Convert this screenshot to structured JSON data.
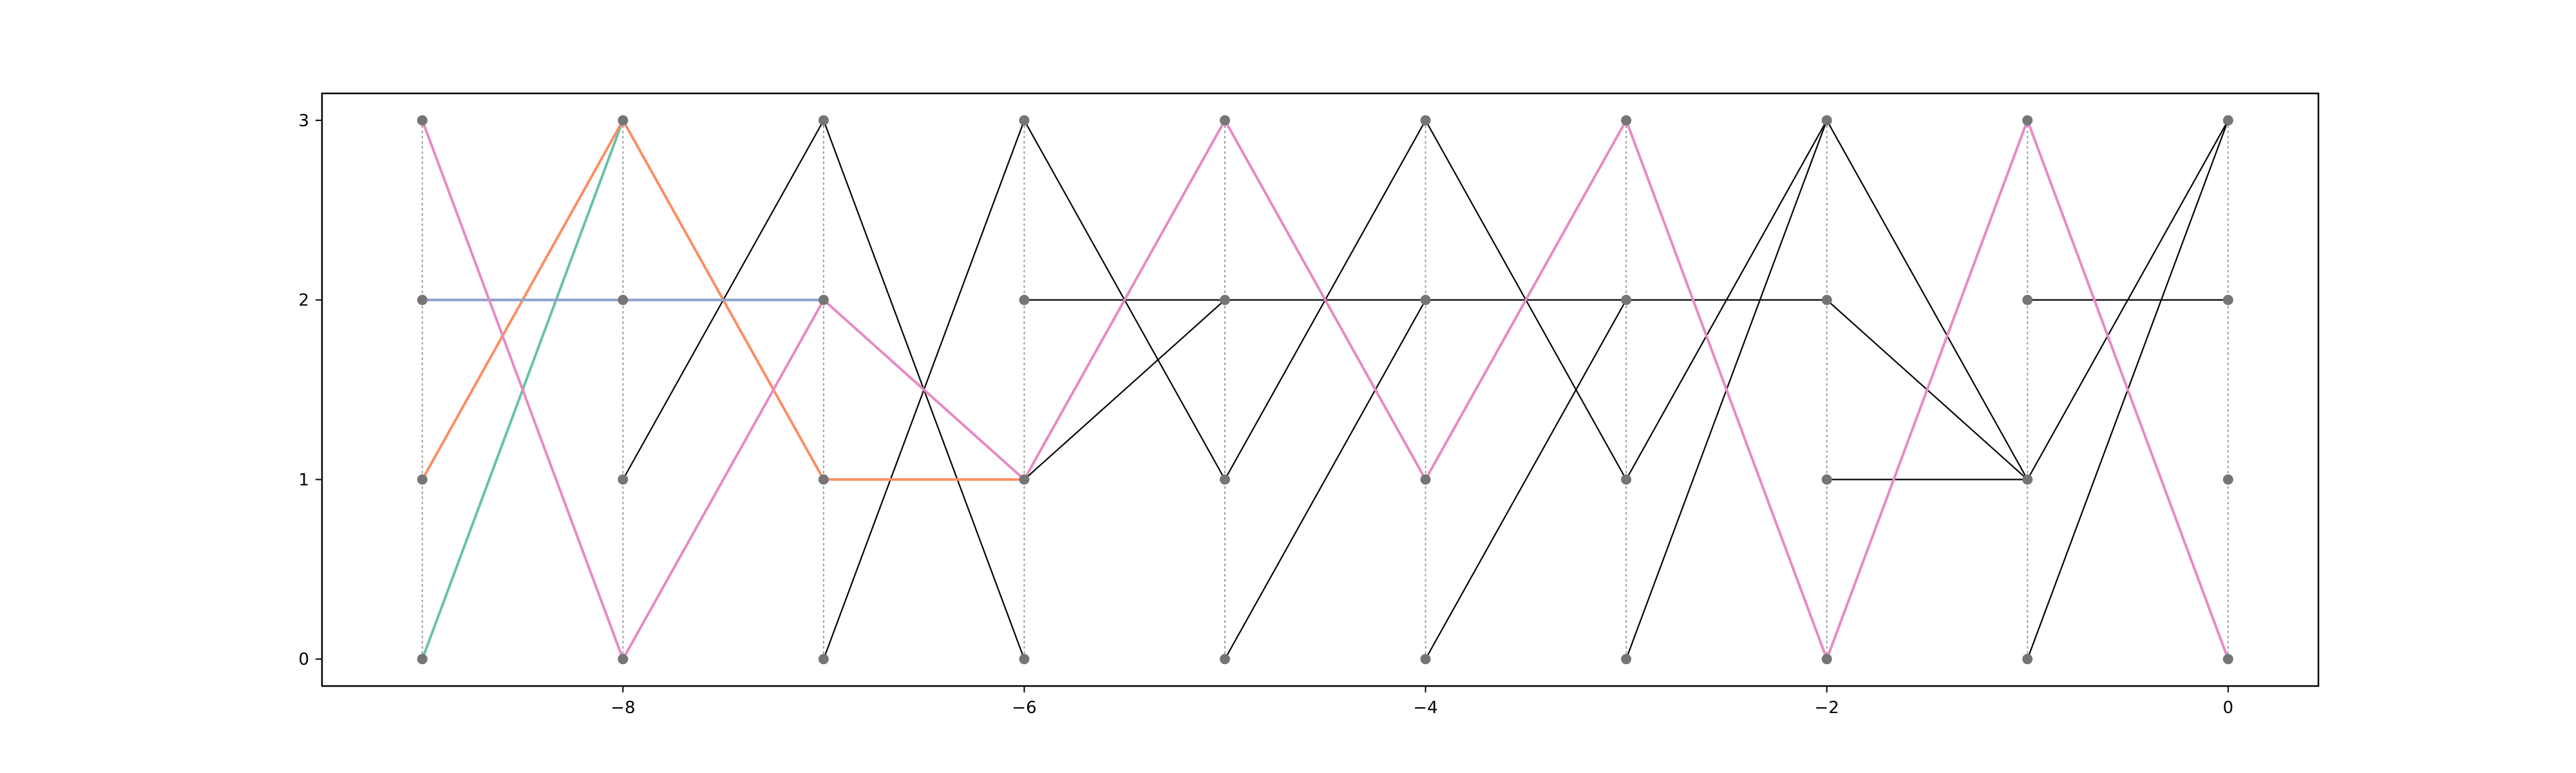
{
  "chart_data": {
    "type": "line",
    "title": "",
    "xlabel": "",
    "ylabel": "",
    "xlim": [
      -9.5,
      0.45
    ],
    "ylim": [
      -0.15,
      3.15
    ],
    "grid": false,
    "x_ticks": [
      -8,
      -6,
      -4,
      -2,
      0
    ],
    "x_tick_labels": [
      "−8",
      "−6",
      "−4",
      "−2",
      "0"
    ],
    "y_ticks": [
      0,
      1,
      2,
      3
    ],
    "y_tick_labels": [
      "0",
      "1",
      "2",
      "3"
    ],
    "columns_x": [
      -9,
      -8,
      -7,
      -6,
      -5,
      -4,
      -3,
      -2,
      -1,
      0
    ],
    "node_levels": [
      0,
      1,
      2,
      3
    ],
    "node_color": "#757575",
    "column_guide_color": "#9e9e9e",
    "black_edges": [
      {
        "from": [
          -8,
          1
        ],
        "to": [
          -7,
          3
        ]
      },
      {
        "from": [
          -7,
          3
        ],
        "to": [
          -6,
          0
        ]
      },
      {
        "from": [
          -7,
          0
        ],
        "to": [
          -6,
          3
        ]
      },
      {
        "from": [
          -6,
          3
        ],
        "to": [
          -5,
          1
        ]
      },
      {
        "from": [
          -6,
          1
        ],
        "to": [
          -5,
          2
        ]
      },
      {
        "from": [
          -6,
          2
        ],
        "to": [
          -5,
          2
        ]
      },
      {
        "from": [
          -5,
          1
        ],
        "to": [
          -4,
          3
        ]
      },
      {
        "from": [
          -5,
          0
        ],
        "to": [
          -4,
          2
        ]
      },
      {
        "from": [
          -5,
          2
        ],
        "to": [
          -4,
          2
        ]
      },
      {
        "from": [
          -4,
          3
        ],
        "to": [
          -3,
          1
        ]
      },
      {
        "from": [
          -4,
          0
        ],
        "to": [
          -3,
          2
        ]
      },
      {
        "from": [
          -4,
          2
        ],
        "to": [
          -3,
          2
        ]
      },
      {
        "from": [
          -3,
          1
        ],
        "to": [
          -2,
          3
        ]
      },
      {
        "from": [
          -3,
          0
        ],
        "to": [
          -2,
          3
        ]
      },
      {
        "from": [
          -3,
          2
        ],
        "to": [
          -2,
          2
        ]
      },
      {
        "from": [
          -2,
          3
        ],
        "to": [
          -1,
          1
        ]
      },
      {
        "from": [
          -2,
          2
        ],
        "to": [
          -1,
          1
        ]
      },
      {
        "from": [
          -2,
          1
        ],
        "to": [
          -1,
          1
        ]
      },
      {
        "from": [
          -1,
          1
        ],
        "to": [
          0,
          3
        ]
      },
      {
        "from": [
          -1,
          0
        ],
        "to": [
          0,
          3
        ]
      },
      {
        "from": [
          -1,
          2
        ],
        "to": [
          0,
          2
        ]
      }
    ],
    "series": [
      {
        "color": "#66c2a5",
        "x": [
          -9,
          -8
        ],
        "y": [
          0,
          3
        ]
      },
      {
        "color": "#fc8d62",
        "x": [
          -9,
          -8,
          -7,
          -6
        ],
        "y": [
          1,
          3,
          1,
          1
        ]
      },
      {
        "color": "#8da0cb",
        "x": [
          -9,
          -8,
          -7
        ],
        "y": [
          2,
          2,
          2
        ]
      },
      {
        "color": "#e78ac3",
        "x": [
          -9,
          -8,
          -7,
          -6,
          -5,
          -4,
          -3,
          -2,
          -1,
          0
        ],
        "y": [
          3,
          0,
          2,
          1,
          3,
          1,
          3,
          0,
          3,
          0
        ]
      }
    ]
  }
}
